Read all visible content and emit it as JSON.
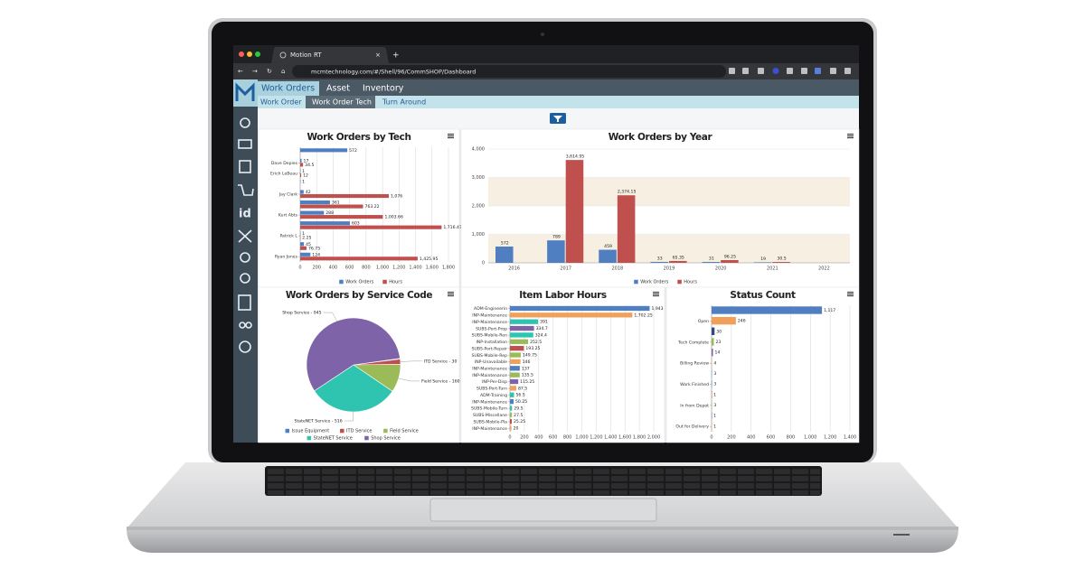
{
  "browser": {
    "tab_title": "Motion RT",
    "url": "mcmtechnology.com/#/Shell/96/CommSHOP/Dashboard"
  },
  "nav": {
    "tabs": [
      "Work Orders",
      "Asset",
      "Inventory"
    ],
    "subtabs": [
      "Work Order",
      "Work Order Tech",
      "Turn Around"
    ]
  },
  "chart_data": [
    {
      "type": "hbar",
      "title": "Work Orders by Tech",
      "categories": [
        null,
        "Dave Depies",
        "Erich LeBeau",
        null,
        "Jay Clark",
        null,
        "Kurt Abts",
        null,
        "Patrick L",
        null,
        "Ryan Jones"
      ],
      "series": [
        {
          "name": "Work Orders",
          "color": "#4f7fc1",
          "values": [
            572,
            17,
            1,
            1,
            42,
            361,
            288,
            603,
            1,
            45,
            124
          ]
        },
        {
          "name": "Hours",
          "color": "#c0504d",
          "values": [
            null,
            34.5,
            12,
            null,
            1076,
            763.22,
            1003.66,
            1716.47,
            2.25,
            76.75,
            1425.95
          ],
          "value_labels": [
            null,
            "34.5",
            "12",
            null,
            "1,076",
            "763.22",
            "1,003.66",
            "1,716.47",
            "2.25",
            "76.75",
            "1,425.95"
          ]
        }
      ],
      "xlim": [
        0,
        1800
      ],
      "xticks": [
        0,
        200,
        400,
        600,
        800,
        {
          "value": 1000,
          "label": "1,000"
        },
        {
          "value": 1200,
          "label": "1,200"
        },
        {
          "value": 1400,
          "label": "1,400"
        },
        {
          "value": 1600,
          "label": "1,600"
        },
        {
          "value": 1800,
          "label": "1,800"
        }
      ],
      "grid": true,
      "legend": "bottom"
    },
    {
      "type": "bar",
      "title": "Work Orders by Year",
      "categories": [
        "2016",
        "2017",
        "2018",
        "2019",
        "2020",
        "2021",
        "2022"
      ],
      "series": [
        {
          "name": "Work Orders",
          "color": "#4f7fc1",
          "values": [
            572,
            789,
            459,
            33,
            31,
            19,
            null
          ]
        },
        {
          "name": "Hours",
          "color": "#c0504d",
          "values": [
            null,
            3614.95,
            2374.15,
            65.35,
            96.25,
            30.5,
            null
          ],
          "value_labels": [
            null,
            "3,614.95",
            "2,374.15",
            "65.35",
            "96.25",
            "30.5",
            null
          ]
        }
      ],
      "ylim": [
        0,
        4000
      ],
      "yticks": [
        0,
        {
          "value": 1000,
          "label": "1,000"
        },
        {
          "value": 2000,
          "label": "2,000"
        },
        {
          "value": 3000,
          "label": "3,000"
        },
        {
          "value": 4000,
          "label": "4,000"
        }
      ],
      "alternate_bands": true,
      "legend": "bottom"
    },
    {
      "type": "pie",
      "title": "Work Orders by Service Code",
      "categories": [
        "Issue Equipment",
        "ITD Service",
        "Field Service",
        "StateNET Service",
        "Shop Service"
      ],
      "values": [
        4,
        30,
        160,
        516,
        945
      ],
      "value_labels": [
        null,
        "ITD Service - 30",
        "Field Service - 160",
        "StateNET Service - 516",
        "Shop Service - 945"
      ],
      "colors": [
        "#4f7fc1",
        "#c0504d",
        "#9bbb59",
        "#2ec4b0",
        "#7e63a8"
      ],
      "legend": "bottom"
    },
    {
      "type": "hbar",
      "title": "Item Labor Hours",
      "categories": [
        "ADM-Engineerin",
        "INP-Maintenance",
        "INP-Maintenance",
        "SUBS-Port-Prop",
        "SUBS-Mobile-Ren",
        "INP-Installation",
        "SUBS-Port-Repair",
        "SUBS-Mobile-Rep",
        "INP-Unavailable",
        "INP-Maintenance",
        "INP-Maintenance",
        "INP-Per-Disp",
        "SUBS-Port-Turn",
        "ADM-Training",
        "INP-Maintenance",
        "SUBS-Mobile-Turn",
        "SUBS-Miscellane",
        "SUBS-Mobile-Pla",
        "INP-Maintenance"
      ],
      "values": [
        1943,
        1702.25,
        391,
        334.7,
        324.4,
        252.5,
        193.25,
        149.75,
        146,
        137,
        135.5,
        115.25,
        87.5,
        56.5,
        50.25,
        29.5,
        27.5,
        25.25,
        20
      ],
      "value_labels": [
        "1,943",
        "1,702.25",
        null,
        null,
        null,
        null,
        null,
        null,
        null,
        null,
        null,
        null,
        null,
        null,
        null,
        null,
        null,
        null,
        null
      ],
      "colors": [
        "#4f7fc1",
        "#f0a05a",
        "#2ec4b0",
        "#7e63a8",
        "#2ec4b0",
        "#9bbb59",
        "#c0504d",
        "#9bbb59",
        "#f0a05a",
        "#4f7fc1",
        "#9bbb59",
        "#7e63a8",
        "#f0a05a",
        "#2ec4b0",
        "#4f7fc1",
        "#2ec4b0",
        "#9bbb59",
        "#c0504d",
        "#f0a05a"
      ],
      "xlim": [
        0,
        2000
      ],
      "xticks": [
        0,
        200,
        400,
        600,
        800,
        {
          "value": 1000,
          "label": "1,000"
        },
        {
          "value": 1200,
          "label": "1,200"
        },
        {
          "value": 1400,
          "label": "1,400"
        },
        {
          "value": 1600,
          "label": "1,600"
        },
        {
          "value": 1800,
          "label": "1,800"
        },
        {
          "value": 2000,
          "label": "2,000"
        }
      ],
      "grid": true
    },
    {
      "type": "hbar",
      "title": "Status Count",
      "categories": [
        null,
        "Open",
        null,
        "Tech Complete",
        null,
        "Billing Review",
        null,
        "Work Finished",
        null,
        "In from Depot",
        null,
        "Out for Delivery"
      ],
      "values": [
        1117,
        246,
        30,
        23,
        14,
        4,
        3,
        3,
        1,
        3,
        1,
        1
      ],
      "value_labels": [
        "1,117",
        null,
        null,
        null,
        null,
        null,
        null,
        null,
        null,
        null,
        null,
        null
      ],
      "colors": [
        "#4f7fc1",
        "#f0a05a",
        "#2b4a7e",
        "#9bbb59",
        "#7e63a8",
        "#f0a05a",
        "#2ec4b0",
        "#4f7fc1",
        "#c0504d",
        "#9bbb59",
        "#7e63a8",
        "#f0a05a"
      ],
      "xlim": [
        0,
        1400
      ],
      "xticks": [
        0,
        200,
        400,
        600,
        800,
        {
          "value": 1000,
          "label": "1,000"
        },
        {
          "value": 1200,
          "label": "1,200"
        },
        {
          "value": 1400,
          "label": "1,400"
        }
      ],
      "grid": true
    }
  ]
}
